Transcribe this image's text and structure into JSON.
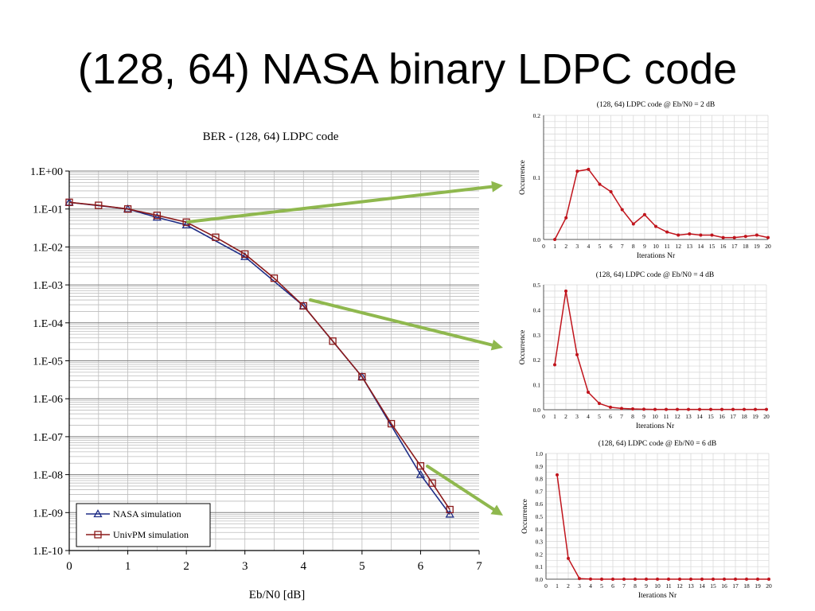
{
  "slide": {
    "title": "(128, 64) NASA binary LDPC code"
  },
  "colors": {
    "nasa": "#1f2d86",
    "univpm": "#8b1a1a",
    "occurrence": "#c0141c",
    "arrow": "#8fb84e"
  },
  "chart_data": [
    {
      "type": "line",
      "title": "BER - (128, 64) LDPC code",
      "xlabel": "Eb/N0 [dB]",
      "ylabel": "",
      "xlim": [
        0,
        7
      ],
      "ylim": [
        1e-10,
        1
      ],
      "yscale": "log",
      "xticks": [
        0,
        1,
        2,
        3,
        4,
        5,
        6,
        7
      ],
      "yticks": [
        "1.E+00",
        "1.E-01",
        "1.E-02",
        "1.E-03",
        "1.E-04",
        "1.E-05",
        "1.E-06",
        "1.E-07",
        "1.E-08",
        "1.E-09",
        "1.E-10"
      ],
      "grid": true,
      "legend": "bottom-left",
      "series": [
        {
          "name": "NASA simulation",
          "marker": "triangle",
          "x": [
            0,
            1,
            1.5,
            2,
            3,
            4,
            5,
            6,
            6.5
          ],
          "y": [
            0.15,
            0.1,
            0.06,
            0.038,
            0.0055,
            0.00028,
            3.8e-06,
            1e-08,
            9e-10
          ]
        },
        {
          "name": "UnivPM simulation",
          "marker": "square",
          "x": [
            0,
            0.5,
            1,
            1.5,
            2,
            2.5,
            3,
            3.5,
            4,
            4.5,
            5,
            5.5,
            6,
            6.2,
            6.5
          ],
          "y": [
            0.15,
            0.125,
            0.1,
            0.068,
            0.045,
            0.018,
            0.0065,
            0.0015,
            0.00028,
            3.3e-05,
            3.8e-06,
            2.2e-07,
            1.7e-08,
            6e-09,
            1.2e-09
          ]
        }
      ]
    },
    {
      "type": "line",
      "title": "(128, 64) LDPC code @ Eb/N0 = 2 dB",
      "xlabel": "Iterations Nr",
      "ylabel": "Occurrence",
      "ylim": [
        0,
        0.2
      ],
      "yticks": [
        "0.0",
        "0.1",
        "0.2"
      ],
      "xticks": [
        0,
        1,
        2,
        3,
        4,
        5,
        6,
        7,
        8,
        9,
        10,
        11,
        12,
        13,
        14,
        15,
        16,
        17,
        18,
        19,
        20
      ],
      "x": [
        1,
        2,
        3,
        4,
        5,
        6,
        7,
        8,
        9,
        10,
        11,
        12,
        13,
        14,
        15,
        16,
        17,
        18,
        19,
        20
      ],
      "values": [
        0.0,
        0.035,
        0.11,
        0.113,
        0.089,
        0.077,
        0.048,
        0.025,
        0.04,
        0.021,
        0.012,
        0.007,
        0.009,
        0.007,
        0.007,
        0.003,
        0.003,
        0.005,
        0.007,
        0.003
      ]
    },
    {
      "type": "line",
      "title": "(128, 64) LDPC code @ Eb/N0 = 4 dB",
      "xlabel": "Iterations Nr",
      "ylabel": "Occurrence",
      "ylim": [
        0,
        0.5
      ],
      "yticks": [
        "0.0",
        "0.1",
        "0.2",
        "0.3",
        "0.4",
        "0.5"
      ],
      "xticks": [
        0,
        1,
        2,
        3,
        4,
        5,
        6,
        7,
        8,
        9,
        10,
        11,
        12,
        13,
        14,
        15,
        16,
        17,
        18,
        19,
        20
      ],
      "x": [
        1,
        2,
        3,
        4,
        5,
        6,
        7,
        8,
        9,
        10,
        11,
        12,
        13,
        14,
        15,
        16,
        17,
        18,
        19,
        20
      ],
      "values": [
        0.18,
        0.475,
        0.22,
        0.07,
        0.025,
        0.01,
        0.005,
        0.003,
        0.002,
        0.001,
        0.001,
        0.001,
        0.001,
        0.001,
        0.001,
        0.001,
        0.001,
        0.001,
        0.001,
        0.001
      ]
    },
    {
      "type": "line",
      "title": "(128, 64) LDPC code @ Eb/N0 = 6 dB",
      "xlabel": "Iterations Nr",
      "ylabel": "Occurrence",
      "ylim": [
        0,
        1.0
      ],
      "yticks": [
        "0.0",
        "0.1",
        "0.2",
        "0.3",
        "0.4",
        "0.5",
        "0.6",
        "0.7",
        "0.8",
        "0.9",
        "1.0"
      ],
      "xticks": [
        0,
        1,
        2,
        3,
        4,
        5,
        6,
        7,
        8,
        9,
        10,
        11,
        12,
        13,
        14,
        15,
        16,
        17,
        18,
        19,
        20
      ],
      "x": [
        1,
        2,
        3,
        4,
        5,
        6,
        7,
        8,
        9,
        10,
        11,
        12,
        13,
        14,
        15,
        16,
        17,
        18,
        19,
        20
      ],
      "values": [
        0.83,
        0.165,
        0.005,
        0.001,
        0.0,
        0.0,
        0.0,
        0.0,
        0.0,
        0.0,
        0.0,
        0.0,
        0.0,
        0.0,
        0.0,
        0.0,
        0.0,
        0.0,
        0.0,
        0.0
      ]
    }
  ]
}
